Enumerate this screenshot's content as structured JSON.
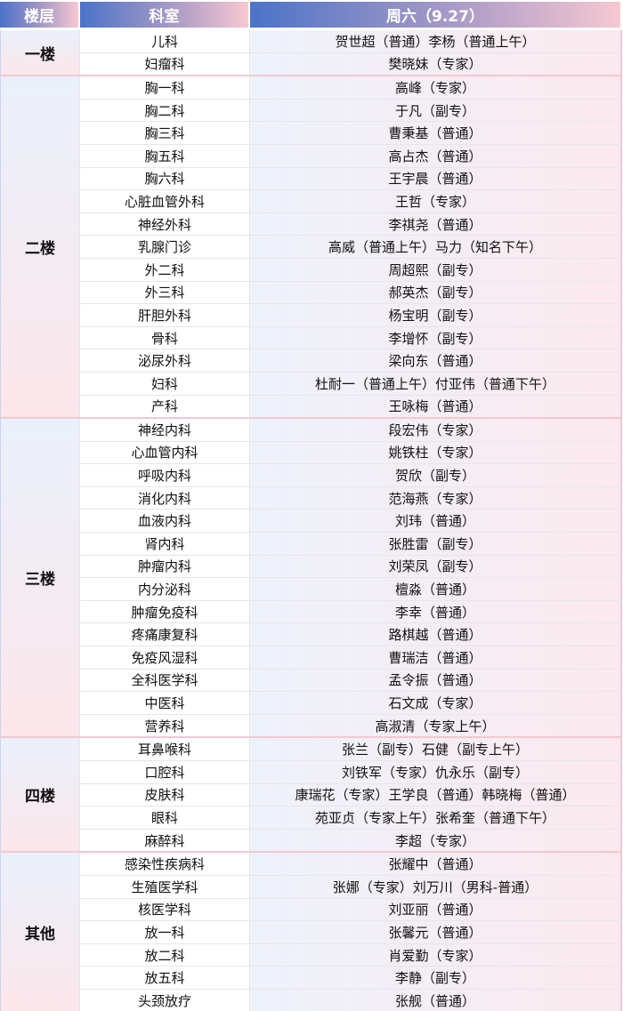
{
  "header": {
    "floor": "楼层",
    "dept": "科室",
    "day": "周六（9.27）"
  },
  "groups": [
    {
      "floor": "一楼",
      "rows": [
        [
          "儿科",
          "贺世超（普通）李杨（普通上午）"
        ],
        [
          "妇瘤科",
          "樊晓妹（专家）"
        ]
      ]
    },
    {
      "floor": "二楼",
      "rows": [
        [
          "胸一科",
          "高峰（专家）"
        ],
        [
          "胸二科",
          "于凡（副专）"
        ],
        [
          "胸三科",
          "曹秉基（普通）"
        ],
        [
          "胸五科",
          "高占杰（普通）"
        ],
        [
          "胸六科",
          "王宇晨（普通）"
        ],
        [
          "心脏血管外科",
          "王哲（专家）"
        ],
        [
          "神经外科",
          "李祺尧（普通）"
        ],
        [
          "乳腺门诊",
          "高威（普通上午）马力（知名下午）"
        ],
        [
          "外二科",
          "周超熙（副专）"
        ],
        [
          "外三科",
          "郝英杰（副专）"
        ],
        [
          "肝胆外科",
          "杨宝明（副专）"
        ],
        [
          "骨科",
          "李增怀（副专）"
        ],
        [
          "泌尿外科",
          "梁向东（普通）"
        ],
        [
          "妇科",
          "杜耐一（普通上午）付亚伟（普通下午）"
        ],
        [
          "产科",
          "王咏梅（普通）"
        ]
      ]
    },
    {
      "floor": "三楼",
      "rows": [
        [
          "神经内科",
          "段宏伟（专家）"
        ],
        [
          "心血管内科",
          "姚铁柱（专家）"
        ],
        [
          "呼吸内科",
          "贺欣（副专）"
        ],
        [
          "消化内科",
          "范海燕（专家）"
        ],
        [
          "血液内科",
          "刘玮（普通）"
        ],
        [
          "肾内科",
          "张胜雷（副专）"
        ],
        [
          "肿瘤内科",
          "刘荣凤（副专）"
        ],
        [
          "内分泌科",
          "檀淼（普通）"
        ],
        [
          "肿瘤免疫科",
          "李幸（普通）"
        ],
        [
          "疼痛康复科",
          "路棋越（普通）"
        ],
        [
          "免疫风湿科",
          "曹瑞洁（普通）"
        ],
        [
          "全科医学科",
          "孟令振（普通）"
        ],
        [
          "中医科",
          "石文成（专家）"
        ],
        [
          "营养科",
          "高淑清（专家上午）"
        ]
      ]
    },
    {
      "floor": "四楼",
      "rows": [
        [
          "耳鼻喉科",
          "张兰（副专）石健（副专上午）"
        ],
        [
          "口腔科",
          "刘铁军（专家）仇永乐（副专）"
        ],
        [
          "皮肤科",
          "康瑞花（专家）王学良（普通）韩晓梅（普通）"
        ],
        [
          "眼科",
          "苑亚贞（专家上午）张希奎（普通下午）"
        ],
        [
          "麻醉科",
          "李超（专家）"
        ]
      ]
    },
    {
      "floor": "其他",
      "rows": [
        [
          "感染性疾病科",
          "张耀中（普通）"
        ],
        [
          "生殖医学科",
          "张娜（专家）刘万川（男科-普通）"
        ],
        [
          "核医学科",
          "刘亚丽（普通）"
        ],
        [
          "放一科",
          "张馨元（普通）"
        ],
        [
          "放二科",
          "肖爱勤（专家）"
        ],
        [
          "放五科",
          "李静（副专）"
        ],
        [
          "头颈放疗",
          "张舰（普通）"
        ]
      ]
    }
  ]
}
